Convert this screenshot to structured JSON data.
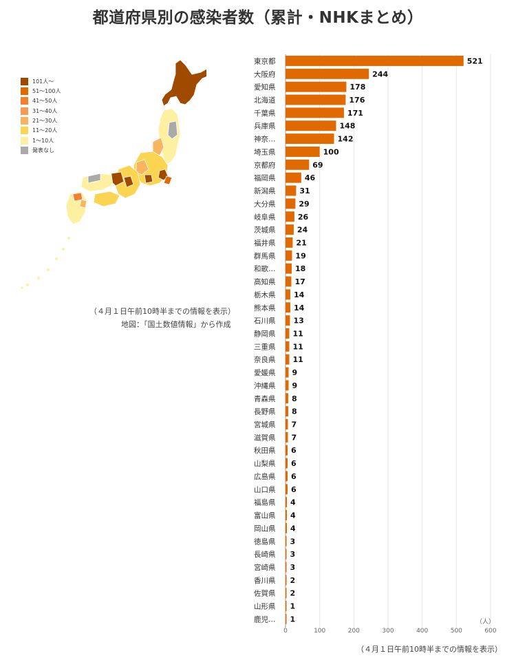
{
  "header": {
    "title": "都道府県別の感染者数（累計・NHKまとめ）"
  },
  "legend": [
    {
      "label": "101人～",
      "color": "#a04a00"
    },
    {
      "label": "51～100人",
      "color": "#e06a00"
    },
    {
      "label": "41～50人",
      "color": "#f57f2e"
    },
    {
      "label": "31～40人",
      "color": "#f99b55"
    },
    {
      "label": "21～30人",
      "color": "#f8b55e"
    },
    {
      "label": "11～20人",
      "color": "#fbd451"
    },
    {
      "label": "1～10人",
      "color": "#fdf0a0"
    },
    {
      "label": "発表なし",
      "color": "#aaaaaa"
    }
  ],
  "map": {
    "note1": "（４月１日午前10時半までの情報を表示）",
    "note2": "地図：「国土数値情報」から作成"
  },
  "colors": {
    "bar": "#e06a00",
    "axis": "#999999",
    "grid": "#e6e6e6"
  },
  "chart_data": {
    "type": "bar",
    "orientation": "horizontal",
    "categories": [
      "東京都",
      "大阪府",
      "愛知県",
      "北海道",
      "千葉県",
      "兵庫県",
      "神奈…",
      "埼玉県",
      "京都府",
      "福岡県",
      "新潟県",
      "大分県",
      "岐阜県",
      "茨城県",
      "福井県",
      "群馬県",
      "和歌…",
      "高知県",
      "栃木県",
      "熊本県",
      "石川県",
      "静岡県",
      "三重県",
      "奈良県",
      "愛媛県",
      "沖縄県",
      "青森県",
      "長野県",
      "宮城県",
      "滋賀県",
      "秋田県",
      "山梨県",
      "広島県",
      "山口県",
      "福島県",
      "富山県",
      "岡山県",
      "徳島県",
      "長崎県",
      "宮崎県",
      "香川県",
      "佐賀県",
      "山形県",
      "鹿児…"
    ],
    "values": [
      521,
      244,
      178,
      176,
      171,
      148,
      142,
      100,
      69,
      46,
      31,
      29,
      26,
      24,
      21,
      19,
      18,
      17,
      14,
      14,
      13,
      11,
      11,
      11,
      9,
      9,
      8,
      8,
      7,
      7,
      6,
      6,
      6,
      6,
      4,
      4,
      4,
      3,
      3,
      3,
      2,
      2,
      1,
      1
    ],
    "xlim": [
      0,
      600
    ],
    "xticks": [
      0,
      100,
      200,
      300,
      400,
      500,
      600
    ],
    "xunit": "（人）",
    "grid": true,
    "footnote": "（４月１日午前10時半までの情報を表示）"
  }
}
